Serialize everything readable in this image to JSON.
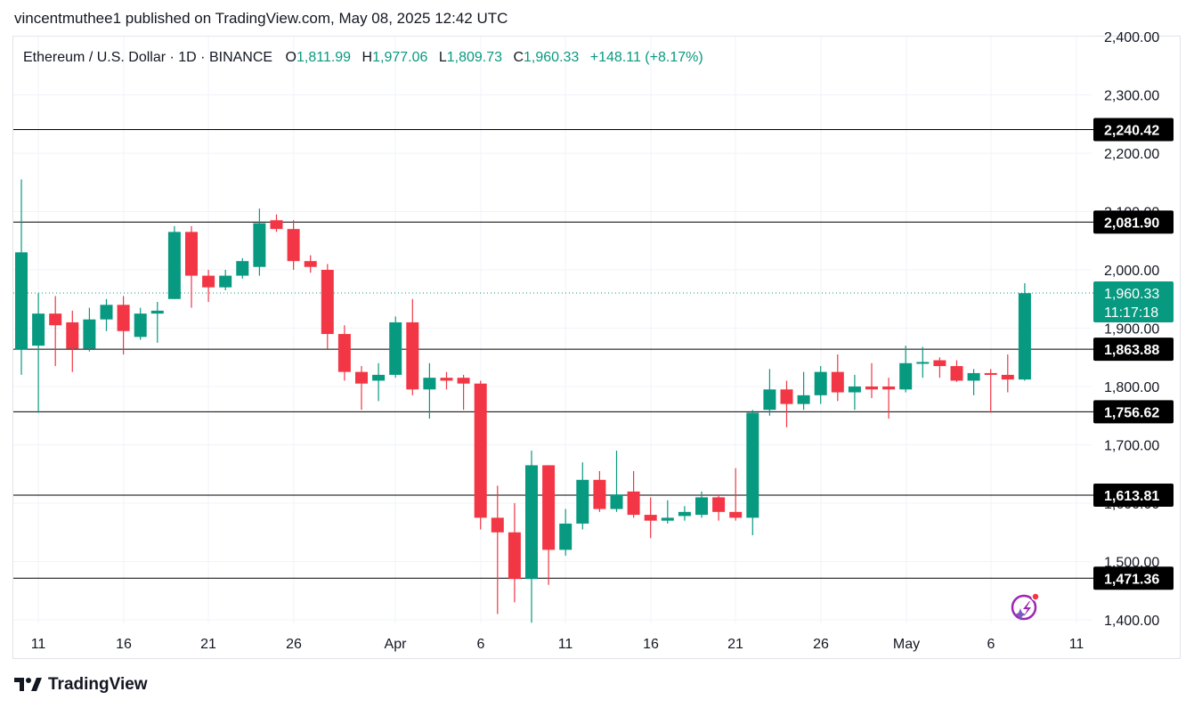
{
  "header": {
    "published": "vincentmuthee1 published on TradingView.com, May 08, 2025 12:42 UTC"
  },
  "legend": {
    "symbol": "Ethereum / U.S. Dollar · 1D · BINANCE",
    "open_prefix": "O",
    "open": "1,811.99",
    "high_prefix": "H",
    "high": "1,977.06",
    "low_prefix": "L",
    "low": "1,809.73",
    "close_prefix": "C",
    "close": "1,960.33",
    "change": "+148.11 (+8.17%)"
  },
  "brand": {
    "name": "TradingView"
  },
  "colors": {
    "up": "#089981",
    "down": "#f23645",
    "text": "#131722",
    "legend_value": "#089981",
    "grid": "#f0f3fa",
    "line": "#000000"
  },
  "chart_data": {
    "type": "candlestick",
    "ylim": [
      1390,
      2450
    ],
    "y_ticks": [
      "2,400.00",
      "2,300.00",
      "2,200.00",
      "2,100.00",
      "2,000.00",
      "1,900.00",
      "1,800.00",
      "1,700.00",
      "1,600.00",
      "1,500.00",
      "1,400.00"
    ],
    "x_ticks": [
      "11",
      "16",
      "21",
      "26",
      "Apr",
      "6",
      "11",
      "16",
      "21",
      "26",
      "May",
      "6",
      "11"
    ],
    "horizontal_lines": [
      "2,240.42",
      "2,081.90",
      "1,863.88",
      "1,756.62",
      "1,613.81",
      "1,471.36"
    ],
    "last_price": "1,960.33",
    "countdown": "11:17:18",
    "candles": [
      {
        "o": 1863,
        "h": 2155,
        "l": 1820,
        "c": 2030
      },
      {
        "o": 1870,
        "h": 1960,
        "l": 1755,
        "c": 1925
      },
      {
        "o": 1925,
        "h": 1955,
        "l": 1835,
        "c": 1905
      },
      {
        "o": 1910,
        "h": 1930,
        "l": 1825,
        "c": 1865
      },
      {
        "o": 1865,
        "h": 1935,
        "l": 1860,
        "c": 1915
      },
      {
        "o": 1915,
        "h": 1950,
        "l": 1895,
        "c": 1940
      },
      {
        "o": 1940,
        "h": 1955,
        "l": 1855,
        "c": 1895
      },
      {
        "o": 1885,
        "h": 1935,
        "l": 1880,
        "c": 1925
      },
      {
        "o": 1925,
        "h": 1945,
        "l": 1875,
        "c": 1930
      },
      {
        "o": 1950,
        "h": 2075,
        "l": 1950,
        "c": 2065
      },
      {
        "o": 2065,
        "h": 2075,
        "l": 1935,
        "c": 1990
      },
      {
        "o": 1990,
        "h": 2000,
        "l": 1945,
        "c": 1970
      },
      {
        "o": 1970,
        "h": 2000,
        "l": 1965,
        "c": 1990
      },
      {
        "o": 1990,
        "h": 2020,
        "l": 1985,
        "c": 2015
      },
      {
        "o": 2005,
        "h": 2105,
        "l": 1990,
        "c": 2080
      },
      {
        "o": 2085,
        "h": 2095,
        "l": 2065,
        "c": 2070
      },
      {
        "o": 2070,
        "h": 2085,
        "l": 2000,
        "c": 2015
      },
      {
        "o": 2015,
        "h": 2025,
        "l": 1995,
        "c": 2005
      },
      {
        "o": 2000,
        "h": 2010,
        "l": 1865,
        "c": 1890
      },
      {
        "o": 1890,
        "h": 1905,
        "l": 1810,
        "c": 1825
      },
      {
        "o": 1825,
        "h": 1835,
        "l": 1760,
        "c": 1805
      },
      {
        "o": 1810,
        "h": 1840,
        "l": 1775,
        "c": 1820
      },
      {
        "o": 1820,
        "h": 1920,
        "l": 1815,
        "c": 1910
      },
      {
        "o": 1910,
        "h": 1950,
        "l": 1785,
        "c": 1795
      },
      {
        "o": 1795,
        "h": 1840,
        "l": 1745,
        "c": 1815
      },
      {
        "o": 1815,
        "h": 1825,
        "l": 1795,
        "c": 1810
      },
      {
        "o": 1815,
        "h": 1820,
        "l": 1760,
        "c": 1805
      },
      {
        "o": 1805,
        "h": 1810,
        "l": 1555,
        "c": 1575
      },
      {
        "o": 1575,
        "h": 1630,
        "l": 1410,
        "c": 1550
      },
      {
        "o": 1550,
        "h": 1600,
        "l": 1430,
        "c": 1470
      },
      {
        "o": 1470,
        "h": 1690,
        "l": 1395,
        "c": 1665
      },
      {
        "o": 1665,
        "h": 1665,
        "l": 1460,
        "c": 1520
      },
      {
        "o": 1520,
        "h": 1590,
        "l": 1510,
        "c": 1565
      },
      {
        "o": 1565,
        "h": 1670,
        "l": 1555,
        "c": 1640
      },
      {
        "o": 1640,
        "h": 1655,
        "l": 1585,
        "c": 1590
      },
      {
        "o": 1590,
        "h": 1690,
        "l": 1585,
        "c": 1615
      },
      {
        "o": 1620,
        "h": 1655,
        "l": 1575,
        "c": 1580
      },
      {
        "o": 1580,
        "h": 1610,
        "l": 1540,
        "c": 1570
      },
      {
        "o": 1570,
        "h": 1605,
        "l": 1565,
        "c": 1575
      },
      {
        "o": 1578,
        "h": 1595,
        "l": 1570,
        "c": 1585
      },
      {
        "o": 1580,
        "h": 1620,
        "l": 1575,
        "c": 1610
      },
      {
        "o": 1610,
        "h": 1615,
        "l": 1570,
        "c": 1585
      },
      {
        "o": 1585,
        "h": 1660,
        "l": 1570,
        "c": 1575
      },
      {
        "o": 1575,
        "h": 1760,
        "l": 1545,
        "c": 1755
      },
      {
        "o": 1760,
        "h": 1830,
        "l": 1750,
        "c": 1795
      },
      {
        "o": 1795,
        "h": 1810,
        "l": 1730,
        "c": 1770
      },
      {
        "o": 1770,
        "h": 1825,
        "l": 1760,
        "c": 1785
      },
      {
        "o": 1785,
        "h": 1835,
        "l": 1770,
        "c": 1825
      },
      {
        "o": 1825,
        "h": 1855,
        "l": 1775,
        "c": 1790
      },
      {
        "o": 1790,
        "h": 1820,
        "l": 1760,
        "c": 1800
      },
      {
        "o": 1800,
        "h": 1840,
        "l": 1780,
        "c": 1795
      },
      {
        "o": 1800,
        "h": 1815,
        "l": 1745,
        "c": 1795
      },
      {
        "o": 1795,
        "h": 1870,
        "l": 1790,
        "c": 1840
      },
      {
        "o": 1840,
        "h": 1868,
        "l": 1815,
        "c": 1842
      },
      {
        "o": 1845,
        "h": 1850,
        "l": 1815,
        "c": 1835
      },
      {
        "o": 1835,
        "h": 1845,
        "l": 1808,
        "c": 1810
      },
      {
        "o": 1810,
        "h": 1830,
        "l": 1785,
        "c": 1823
      },
      {
        "o": 1823,
        "h": 1830,
        "l": 1755,
        "c": 1820
      },
      {
        "o": 1820,
        "h": 1855,
        "l": 1790,
        "c": 1812
      },
      {
        "o": 1812,
        "h": 1977,
        "l": 1810,
        "c": 1960
      }
    ]
  }
}
